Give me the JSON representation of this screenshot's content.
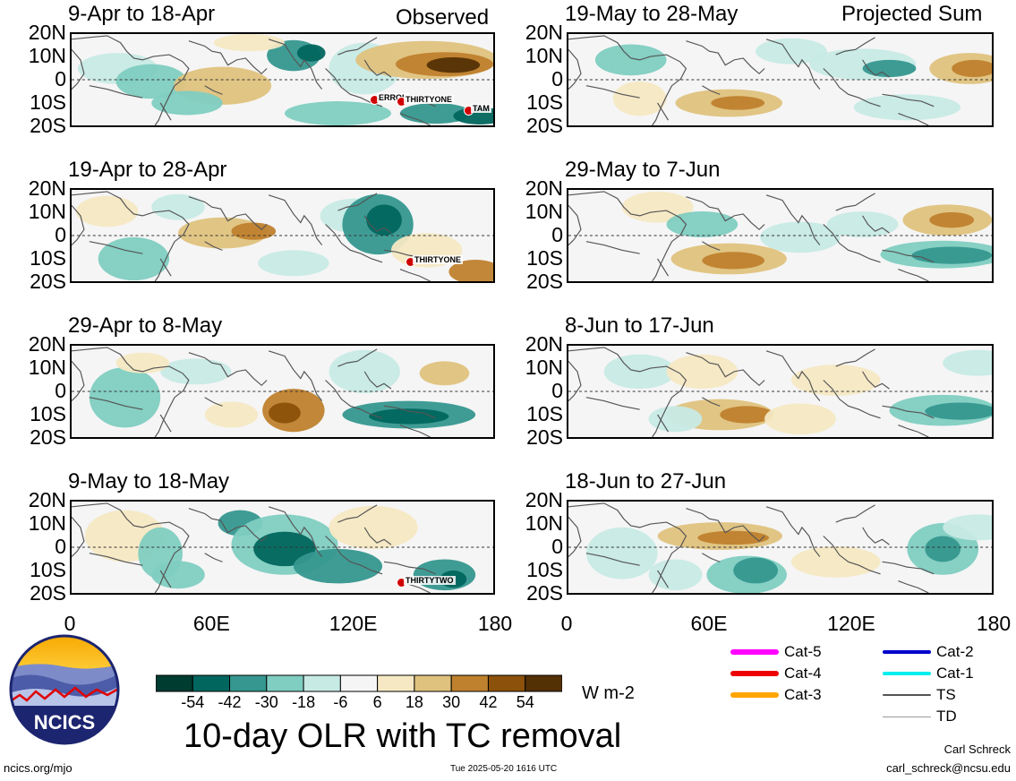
{
  "header": {
    "observed": "Observed",
    "projected": "Projected Sum"
  },
  "panels": [
    {
      "title": "9-Apr to 18-Apr",
      "storms": [
        "ERROL",
        "THIRTYONE",
        "TAM"
      ]
    },
    {
      "title": "19-Apr to 28-Apr",
      "storms": [
        "THIRTYONE"
      ]
    },
    {
      "title": "29-Apr to 8-May",
      "storms": []
    },
    {
      "title": "9-May to 18-May",
      "storms": [
        "THIRTYTWO"
      ]
    },
    {
      "title": "19-May to 28-May",
      "storms": []
    },
    {
      "title": "29-May to 7-Jun",
      "storms": []
    },
    {
      "title": "8-Jun to 17-Jun",
      "storms": []
    },
    {
      "title": "18-Jun to 27-Jun",
      "storms": []
    }
  ],
  "lat_labels": [
    "20N",
    "10N",
    "0",
    "10S",
    "20S"
  ],
  "lon_labels": [
    "0",
    "60E",
    "120E",
    "180"
  ],
  "colorbar": {
    "colors": [
      "#003c30",
      "#01665e",
      "#35978f",
      "#80cdc1",
      "#c7eae5",
      "#f5f5f5",
      "#f6e8c3",
      "#dfc27d",
      "#bf812d",
      "#8c510a",
      "#543005"
    ],
    "ticks": [
      "-54",
      "-42",
      "-30",
      "-18",
      "-6",
      "6",
      "18",
      "30",
      "42",
      "54"
    ],
    "unit": "W m-2"
  },
  "main_title": "10-day OLR with TC removal",
  "logo_text": "NCICS",
  "footer": {
    "left": "ncics.org/mjo",
    "center": "Tue 2025-05-20 1616 UTC",
    "author": "Carl Schreck",
    "email": "carl_schreck@ncsu.edu"
  },
  "tc_legend": [
    {
      "label": "Cat-5",
      "color": "#ff00ff"
    },
    {
      "label": "Cat-4",
      "color": "#ee0000"
    },
    {
      "label": "Cat-3",
      "color": "#ffa500"
    },
    {
      "label": "Cat-2",
      "color": "#0000cc"
    },
    {
      "label": "Cat-1",
      "color": "#00eeee"
    },
    {
      "label": "TS",
      "color": "#555555"
    },
    {
      "label": "TD",
      "color": "#999999"
    }
  ]
}
